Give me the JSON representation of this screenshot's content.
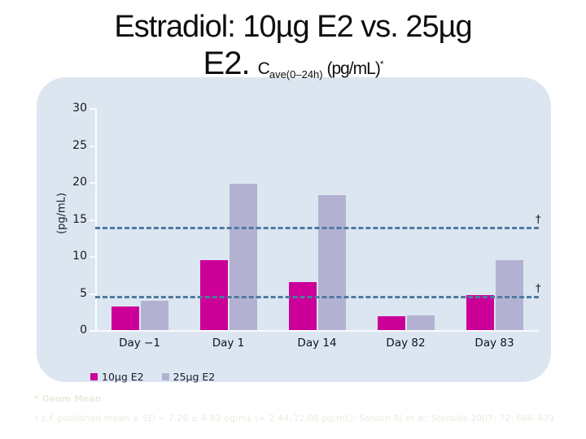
{
  "title": {
    "line1": "Estradiol: 10µg E2 vs. 25µg",
    "line2_big": "E2. ",
    "line2_c": "C",
    "line2_sub": "ave(0–24h)",
    "line2_units": " (pg/mL)",
    "line2_star": "*"
  },
  "chart_data": {
    "type": "bar",
    "categories": [
      "Day −1",
      "Day 1",
      "Day 14",
      "Day 82",
      "Day 83"
    ],
    "series": [
      {
        "name": "10µg E2",
        "color": "#cc0099",
        "values": [
          3.2,
          9.5,
          6.5,
          1.9,
          4.7
        ]
      },
      {
        "name": "25µg E2",
        "color": "#b3b1d2",
        "values": [
          4.0,
          19.8,
          18.2,
          2.0,
          9.4
        ]
      }
    ],
    "ylabel": "(pg/mL)",
    "ylim": [
      0,
      30
    ],
    "yticks": [
      0,
      5,
      10,
      15,
      20,
      25,
      30
    ],
    "reference_lines": [
      {
        "value": 13.8,
        "marker": "†"
      },
      {
        "value": 4.5,
        "marker": "†"
      }
    ],
    "grid": false,
    "legend_position": "bottom-left",
    "panel_bg": "#dce6f1",
    "dashed_line_color": "#4f7aa0"
  },
  "footnotes": {
    "line1": "* Geom Mean",
    "line2_pre": "† c.f. published mean ± SD = 7.26 ± 4.82 pg/mL (= 2.44–12.08 pg/mL); Santen RJ et al; ",
    "line2_journal": "Steroids",
    "line2_post": " 2007; 72: 666–671"
  }
}
